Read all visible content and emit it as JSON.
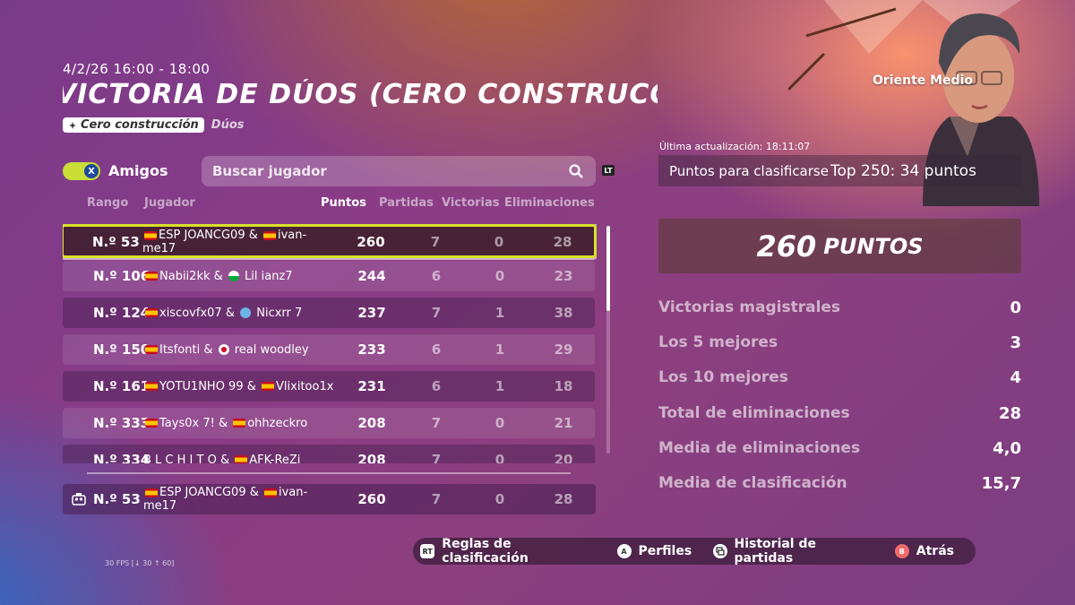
{
  "header": {
    "date_range": "4/2/26 16:00 - 18:00",
    "title": "VICTORIA DE DÚOS (CERO CONSTRUCCIÓN)",
    "mode_badge": "Cero construcción",
    "mode_sub": "Dúos"
  },
  "filters": {
    "friends_toggle_key": "X",
    "friends_label": "Amigos",
    "search_placeholder": "Buscar jugador",
    "search_hotkey": "LT"
  },
  "table": {
    "columns": {
      "rank": "Rango",
      "player": "Jugador",
      "points": "Puntos",
      "games": "Partidas",
      "wins": "Victorias",
      "elims": "Eliminaciones"
    },
    "rows": [
      {
        "rank": "N.º 53",
        "p1": "ESP JOANCG09",
        "p2": "ivan-me17",
        "points": "260",
        "games": "7",
        "wins": "0",
        "elims": "28"
      },
      {
        "rank": "N.º 106",
        "p1": "Nabii2kk",
        "p2": "Lil ianz7",
        "points": "244",
        "games": "6",
        "wins": "0",
        "elims": "23"
      },
      {
        "rank": "N.º 124",
        "p1": "xiscovfx07",
        "p2": "Nicxrr 7",
        "points": "237",
        "games": "7",
        "wins": "1",
        "elims": "38"
      },
      {
        "rank": "N.º 150",
        "p1": "Itsfonti",
        "p2": "real woodley",
        "points": "233",
        "games": "6",
        "wins": "1",
        "elims": "29"
      },
      {
        "rank": "N.º 161",
        "p1": "YOTU1NHO 99",
        "p2": "Vlixitoo1x",
        "points": "231",
        "games": "6",
        "wins": "1",
        "elims": "18"
      },
      {
        "rank": "N.º 333",
        "p1": "Tays0x 7!",
        "p2": "ohhzeckro",
        "points": "208",
        "games": "7",
        "wins": "0",
        "elims": "21"
      },
      {
        "rank": "N.º 334",
        "p1": "B L C H I T O",
        "p2": "AFK-ReZi",
        "points": "208",
        "games": "7",
        "wins": "0",
        "elims": "20"
      }
    ],
    "my_row": {
      "rank": "N.º 53",
      "p1": "ESP JOANCG09",
      "p2": "ivan-me17",
      "points": "260",
      "games": "7",
      "wins": "0",
      "elims": "28"
    }
  },
  "region": "Oriente Medio",
  "stats_panel": {
    "last_updated": "Última actualización: 18:11:07",
    "qualify_label": "Puntos para clasificarse",
    "qualify_value": "Top 250: 34 puntos",
    "points_big": "260",
    "points_label": "PUNTOS",
    "stats": [
      {
        "label": "Victorias magistrales",
        "value": "0"
      },
      {
        "label": "Los 5 mejores",
        "value": "3"
      },
      {
        "label": "Los 10 mejores",
        "value": "4"
      },
      {
        "label": "Total de eliminaciones",
        "value": "28"
      },
      {
        "label": "Media de eliminaciones",
        "value": "4,0"
      },
      {
        "label": "Media de clasificación",
        "value": "15,7"
      }
    ]
  },
  "bottom_bar": {
    "rules_key": "RT",
    "rules": "Reglas de clasificación",
    "profiles_key": "A",
    "profiles": "Perfiles",
    "history": "Historial de partidas",
    "back_key": "B",
    "back": "Atrás"
  },
  "fps": "30 FPS [↓ 30 ↑ 60]",
  "colors": {
    "accent": "#d9e22a",
    "toggle": "#c9df37",
    "back_button": "#f06a6a"
  }
}
